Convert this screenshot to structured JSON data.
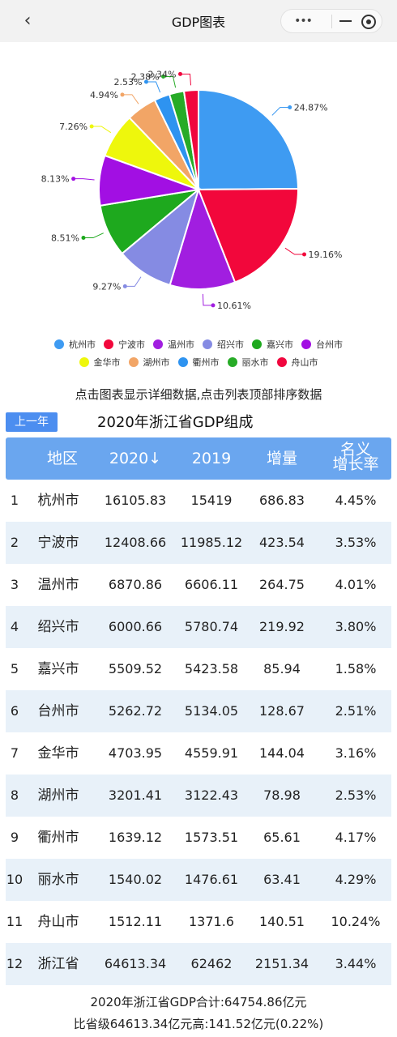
{
  "topbar": {
    "title": "GDP图表",
    "back_icon": "chevron-left",
    "more_icon": "ellipsis",
    "minimize_icon": "minus",
    "close_icon": "target"
  },
  "chart_data": {
    "type": "pie",
    "labels": [
      "杭州市",
      "宁波市",
      "温州市",
      "绍兴市",
      "嘉兴市",
      "台州市",
      "金华市",
      "湖州市",
      "衢州市",
      "丽水市",
      "舟山市"
    ],
    "values": [
      24.87,
      19.16,
      10.61,
      9.27,
      8.51,
      8.13,
      7.26,
      4.94,
      2.53,
      2.38,
      2.34
    ],
    "value_labels": [
      "24.87%",
      "19.16%",
      "10.61%",
      "9.27%",
      "8.51%",
      "8.13%",
      "7.26%",
      "4.94%",
      "2.53%",
      "2.38%",
      "2.34%"
    ],
    "colors": [
      "#3e9bf2",
      "#f2073b",
      "#a11ee0",
      "#858be3",
      "#1ea91e",
      "#a20fe3",
      "#eef70c",
      "#f2a566",
      "#2e93f0",
      "#27ab27",
      "#f0073e"
    ],
    "legend_position": "bottom"
  },
  "hint": "点击图表显示详细数据,点击列表顶部排序数据",
  "prev_button": "上一年",
  "table_title": "2020年浙江省GDP组成",
  "table": {
    "headers": [
      "地区",
      "2020↓",
      "2019",
      "增量",
      "名义",
      "增长率"
    ],
    "rows": [
      [
        "1",
        "杭州市",
        "16105.83",
        "15419",
        "686.83",
        "4.45%"
      ],
      [
        "2",
        "宁波市",
        "12408.66",
        "11985.12",
        "423.54",
        "3.53%"
      ],
      [
        "3",
        "温州市",
        "6870.86",
        "6606.11",
        "264.75",
        "4.01%"
      ],
      [
        "4",
        "绍兴市",
        "6000.66",
        "5780.74",
        "219.92",
        "3.80%"
      ],
      [
        "5",
        "嘉兴市",
        "5509.52",
        "5423.58",
        "85.94",
        "1.58%"
      ],
      [
        "6",
        "台州市",
        "5262.72",
        "5134.05",
        "128.67",
        "2.51%"
      ],
      [
        "7",
        "金华市",
        "4703.95",
        "4559.91",
        "144.04",
        "3.16%"
      ],
      [
        "8",
        "湖州市",
        "3201.41",
        "3122.43",
        "78.98",
        "2.53%"
      ],
      [
        "9",
        "衢州市",
        "1639.12",
        "1573.51",
        "65.61",
        "4.17%"
      ],
      [
        "10",
        "丽水市",
        "1540.02",
        "1476.61",
        "63.41",
        "4.29%"
      ],
      [
        "11",
        "舟山市",
        "1512.11",
        "1371.6",
        "140.51",
        "10.24%"
      ],
      [
        "12",
        "浙江省",
        "64613.34",
        "62462",
        "2151.34",
        "3.44%"
      ]
    ]
  },
  "summary": {
    "line1": "2020年浙江省GDP合计:64754.86亿元",
    "line2": "比省级64613.34亿元高:141.52亿元(0.22%)"
  }
}
